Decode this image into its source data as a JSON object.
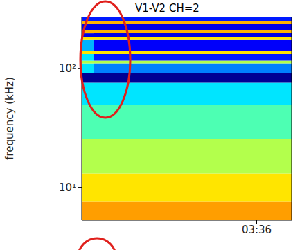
{
  "chart_data": {
    "type": "heatmap",
    "title": "V1-V2 CH=2",
    "y_label": "frequency (kHz)",
    "log": "y",
    "xlim": [
      211,
      217
    ],
    "xticks": [
      {
        "value": 216,
        "label": "03:36"
      }
    ],
    "ylim": [
      5.3,
      272
    ],
    "yticks": [
      {
        "value": 10,
        "label": "10¹"
      },
      {
        "value": 100,
        "label": "10²"
      }
    ],
    "x_bins": [
      211,
      211.35,
      217
    ],
    "y_bins": [
      5.3,
      7.66,
      13.1,
      25.4,
      49.4,
      75.7,
      91,
      110,
      116,
      132,
      140,
      173,
      182,
      197,
      208,
      238,
      250,
      272
    ],
    "cells": [
      [
        0.72,
        0.65,
        0.55,
        0.45,
        0.35,
        0.02,
        0.35,
        0.55,
        0.35,
        0.65,
        0.3,
        0.65,
        0.1,
        0.7,
        0.1,
        0.7,
        0.15
      ],
      [
        0.72,
        0.65,
        0.55,
        0.45,
        0.35,
        0.02,
        0.25,
        0.55,
        0.15,
        0.65,
        0.12,
        0.65,
        0.1,
        0.7,
        0.1,
        0.7,
        0.15
      ]
    ],
    "zlim": [
      0,
      1
    ]
  }
}
